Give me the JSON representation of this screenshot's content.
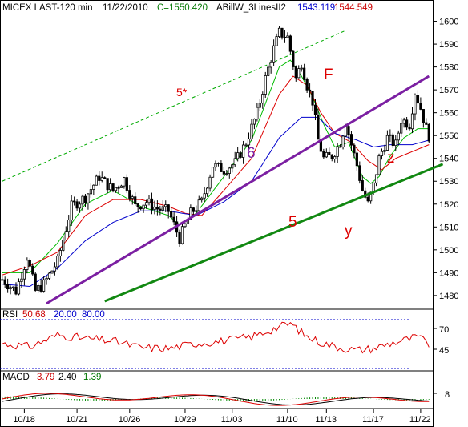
{
  "header": {
    "symbol_interval": "MICEX LAST-120 min",
    "date": "11/22/2010",
    "close": "C=1550.420",
    "indicator": "ABillW_3LinesII2",
    "ind_val1": "1543.119",
    "ind_val2": "1544.549"
  },
  "rsi_panel": {
    "label": "RSI",
    "value": "50.68",
    "level_low": "20.00",
    "level_high": "80.00",
    "ticks": [
      "70",
      "45"
    ]
  },
  "macd_panel": {
    "label": "MACD",
    "value": "3.79",
    "signal": "2.40",
    "hist": "1.39",
    "ticks": [
      "8"
    ]
  },
  "annotations": {
    "five_star": "5*",
    "F": "F",
    "six": "6",
    "five": "5",
    "y": "y",
    "z": "z"
  },
  "colors": {
    "price": "#000000",
    "ma_green": "#00bb00",
    "ma_red": "#dd0000",
    "ma_blue": "#0000cc",
    "line_6": "#7b1fa2",
    "line_5": "#118811",
    "label_red": "#dd0000"
  },
  "chart_data": {
    "type": "candlestick",
    "title": "MICEX LAST-120 min",
    "x_ticks": [
      "10/18",
      "10/21",
      "10/26",
      "10/29",
      "11/03",
      "11/10",
      "11/13",
      "11/17",
      "11/22"
    ],
    "y_ticks": [
      1480,
      1490,
      1500,
      1510,
      1520,
      1530,
      1540,
      1550,
      1560,
      1570,
      1580,
      1590,
      1600
    ],
    "ylim": [
      1474,
      1603
    ],
    "close_path": [
      [
        0,
        1487
      ],
      [
        5,
        1482
      ],
      [
        9,
        1497
      ],
      [
        12,
        1482
      ],
      [
        15,
        1485
      ],
      [
        20,
        1495
      ],
      [
        25,
        1519
      ],
      [
        30,
        1523
      ],
      [
        35,
        1532
      ],
      [
        40,
        1526
      ],
      [
        44,
        1531
      ],
      [
        48,
        1519
      ],
      [
        52,
        1521
      ],
      [
        56,
        1518
      ],
      [
        60,
        1517
      ],
      [
        64,
        1505
      ],
      [
        68,
        1516
      ],
      [
        72,
        1521
      ],
      [
        76,
        1537
      ],
      [
        80,
        1535
      ],
      [
        84,
        1538
      ],
      [
        88,
        1547
      ],
      [
        92,
        1560
      ],
      [
        95,
        1575
      ],
      [
        98,
        1588
      ],
      [
        100,
        1595
      ],
      [
        103,
        1593
      ],
      [
        106,
        1575
      ],
      [
        108,
        1582
      ],
      [
        110,
        1572
      ],
      [
        112,
        1565
      ],
      [
        114,
        1548
      ],
      [
        116,
        1540
      ],
      [
        119,
        1541
      ],
      [
        122,
        1547
      ],
      [
        124,
        1556
      ],
      [
        126,
        1546
      ],
      [
        128,
        1537
      ],
      [
        130,
        1526
      ],
      [
        132,
        1520
      ],
      [
        134,
        1528
      ],
      [
        136,
        1540
      ],
      [
        139,
        1549
      ],
      [
        142,
        1546
      ],
      [
        144,
        1557
      ],
      [
        147,
        1555
      ],
      [
        149,
        1569
      ],
      [
        151,
        1562
      ],
      [
        153,
        1553
      ],
      [
        154,
        1550
      ]
    ],
    "moving_averages": [
      {
        "color": "green",
        "path": [
          [
            0,
            1490
          ],
          [
            10,
            1490
          ],
          [
            20,
            1503
          ],
          [
            30,
            1520
          ],
          [
            40,
            1526
          ],
          [
            50,
            1519
          ],
          [
            60,
            1515
          ],
          [
            64,
            1511
          ],
          [
            70,
            1516
          ],
          [
            80,
            1532
          ],
          [
            90,
            1548
          ],
          [
            100,
            1580
          ],
          [
            104,
            1583
          ],
          [
            108,
            1576
          ],
          [
            112,
            1567
          ],
          [
            116,
            1555
          ],
          [
            120,
            1545
          ],
          [
            125,
            1547
          ],
          [
            130,
            1532
          ],
          [
            133,
            1529
          ],
          [
            136,
            1532
          ],
          [
            140,
            1541
          ],
          [
            145,
            1549
          ],
          [
            150,
            1553
          ],
          [
            154,
            1553
          ]
        ]
      },
      {
        "color": "red",
        "path": [
          [
            0,
            1489
          ],
          [
            10,
            1493
          ],
          [
            20,
            1499
          ],
          [
            30,
            1515
          ],
          [
            40,
            1522
          ],
          [
            50,
            1522
          ],
          [
            60,
            1519
          ],
          [
            66,
            1516
          ],
          [
            72,
            1515
          ],
          [
            80,
            1526
          ],
          [
            90,
            1540
          ],
          [
            100,
            1568
          ],
          [
            105,
            1576
          ],
          [
            110,
            1572
          ],
          [
            115,
            1560
          ],
          [
            120,
            1551
          ],
          [
            126,
            1547
          ],
          [
            132,
            1539
          ],
          [
            137,
            1535
          ],
          [
            142,
            1540
          ],
          [
            148,
            1543
          ],
          [
            154,
            1546
          ]
        ]
      },
      {
        "color": "blue",
        "path": [
          [
            0,
            1485
          ],
          [
            10,
            1484
          ],
          [
            20,
            1492
          ],
          [
            30,
            1504
          ],
          [
            40,
            1512
          ],
          [
            50,
            1517
          ],
          [
            60,
            1517
          ],
          [
            70,
            1515
          ],
          [
            80,
            1521
          ],
          [
            90,
            1530
          ],
          [
            100,
            1549
          ],
          [
            108,
            1558
          ],
          [
            114,
            1558
          ],
          [
            120,
            1551
          ],
          [
            128,
            1548
          ],
          [
            134,
            1545
          ],
          [
            140,
            1546
          ],
          [
            148,
            1546
          ],
          [
            154,
            1548
          ]
        ]
      }
    ],
    "trend_lines": [
      {
        "name": "6",
        "from": [
          16,
          1476.5
        ],
        "to": [
          154,
          1576
        ],
        "color": "purple"
      },
      {
        "name": "5",
        "from": [
          37,
          1477.5
        ],
        "to": [
          159,
          1537.5
        ],
        "color": "green"
      },
      {
        "name": "5*",
        "from": [
          0,
          1530
        ],
        "to": [
          124,
          1596
        ],
        "color": "green-dashed"
      }
    ],
    "rsi": {
      "value": 50.68,
      "levels": [
        20,
        80
      ],
      "path": [
        [
          0,
          52
        ],
        [
          10,
          48
        ],
        [
          20,
          62
        ],
        [
          30,
          58
        ],
        [
          40,
          55
        ],
        [
          50,
          47
        ],
        [
          60,
          46
        ],
        [
          70,
          52
        ],
        [
          80,
          55
        ],
        [
          90,
          60
        ],
        [
          100,
          72
        ],
        [
          104,
          76
        ],
        [
          110,
          60
        ],
        [
          116,
          52
        ],
        [
          122,
          47
        ],
        [
          128,
          44
        ],
        [
          134,
          46
        ],
        [
          140,
          52
        ],
        [
          145,
          56
        ],
        [
          150,
          60
        ],
        [
          154,
          51
        ]
      ]
    },
    "macd": {
      "value": 3.79,
      "signal": 2.4,
      "histogram": 1.39
    }
  }
}
